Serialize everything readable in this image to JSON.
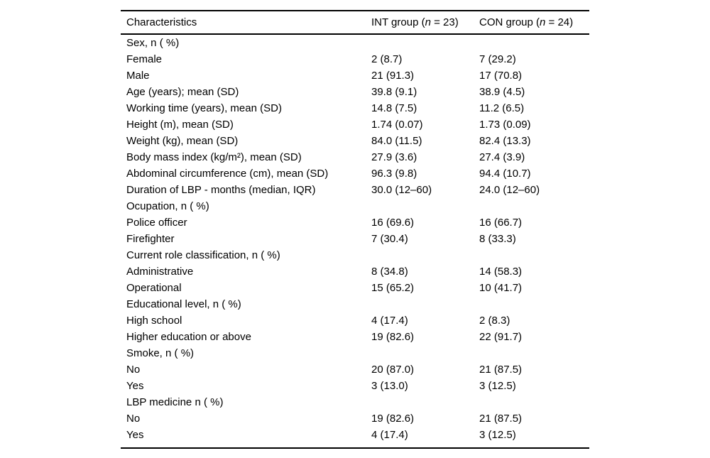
{
  "page": {
    "background": "#ffffff",
    "text_color": "#000000",
    "rule_color": "#000000"
  },
  "header_parts": {
    "col1": "Characteristics",
    "col2": {
      "prefix": "INT group (",
      "n": "n",
      "suffix": " = 23)"
    },
    "col3": {
      "prefix": "CON group (",
      "n": "n",
      "suffix": " = 24)"
    }
  },
  "chart_data": {
    "type": "table",
    "columns": [
      "Characteristics",
      "INT group (n = 23)",
      "CON group (n = 24)"
    ],
    "rows": [
      [
        "Sex, n ( %)",
        "",
        ""
      ],
      [
        "Female",
        "2 (8.7)",
        "7 (29.2)"
      ],
      [
        "Male",
        "21 (91.3)",
        "17 (70.8)"
      ],
      [
        "Age (years); mean (SD)",
        "39.8 (9.1)",
        "38.9 (4.5)"
      ],
      [
        "Working time (years), mean (SD)",
        "14.8 (7.5)",
        "11.2 (6.5)"
      ],
      [
        "Height (m), mean (SD)",
        "1.74 (0.07)",
        "1.73 (0.09)"
      ],
      [
        "Weight (kg), mean (SD)",
        "84.0 (11.5)",
        "82.4 (13.3)"
      ],
      [
        "Body mass index (kg/m²), mean (SD)",
        "27.9 (3.6)",
        "27.4 (3.9)"
      ],
      [
        "Abdominal circumference (cm), mean (SD)",
        "96.3 (9.8)",
        "94.4 (10.7)"
      ],
      [
        "Duration of LBP - months (median, IQR)",
        "30.0 (12–60)",
        "24.0 (12–60)"
      ],
      [
        "Ocupation, n ( %)",
        "",
        ""
      ],
      [
        "Police officer",
        "16 (69.6)",
        "16 (66.7)"
      ],
      [
        "Firefighter",
        "7 (30.4)",
        "8 (33.3)"
      ],
      [
        "Current role classification, n ( %)",
        "",
        ""
      ],
      [
        "Administrative",
        "8 (34.8)",
        "14 (58.3)"
      ],
      [
        "Operational",
        "15 (65.2)",
        "10 (41.7)"
      ],
      [
        "Educational level, n ( %)",
        "",
        ""
      ],
      [
        "High school",
        "4 (17.4)",
        "2 (8.3)"
      ],
      [
        "Higher education or above",
        "19 (82.6)",
        "22 (91.7)"
      ],
      [
        "Smoke, n ( %)",
        "",
        ""
      ],
      [
        "No",
        "20 (87.0)",
        "21 (87.5)"
      ],
      [
        "Yes",
        "3 (13.0)",
        "3 (12.5)"
      ],
      [
        "LBP medicine n ( %)",
        "",
        ""
      ],
      [
        "No",
        "19 (82.6)",
        "21 (87.5)"
      ],
      [
        "Yes",
        "4 (17.4)",
        "3 (12.5)"
      ]
    ]
  }
}
